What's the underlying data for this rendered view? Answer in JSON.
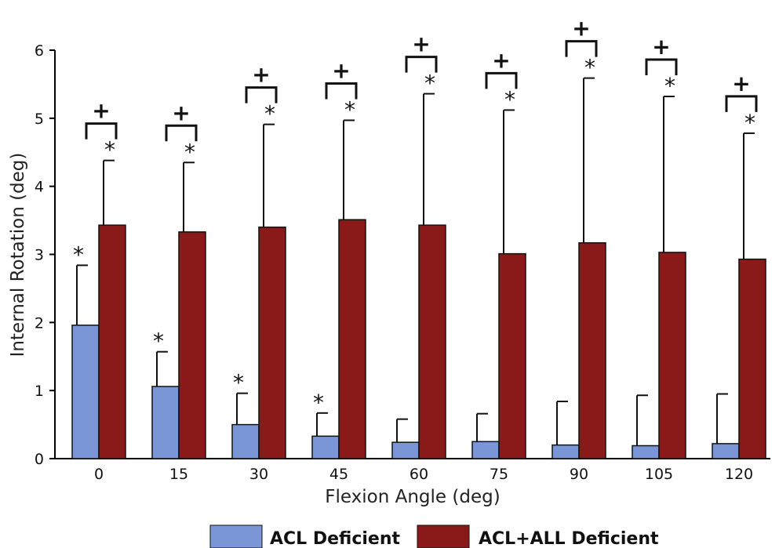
{
  "chart_data": {
    "type": "bar",
    "xlabel": "Flexion Angle (deg)",
    "ylabel": "Internal Rotation (deg)",
    "ylim": [
      0,
      6
    ],
    "yticks": [
      "0",
      "1",
      "2",
      "3",
      "4",
      "5",
      "6"
    ],
    "categories": [
      "0",
      "15",
      "30",
      "45",
      "60",
      "75",
      "90",
      "105",
      "120"
    ],
    "series": [
      {
        "name": "ACL Deficient",
        "color": "#7b96d6",
        "values": [
          1.96,
          1.06,
          0.5,
          0.33,
          0.24,
          0.25,
          0.2,
          0.19,
          0.22
        ],
        "error_upper": [
          0.88,
          0.51,
          0.46,
          0.34,
          0.34,
          0.41,
          0.64,
          0.74,
          0.73
        ],
        "significance": [
          "*",
          "*",
          "*",
          "*",
          "",
          "",
          "",
          "",
          ""
        ]
      },
      {
        "name": "ACL+ALL Deficient",
        "color": "#8a1a1a",
        "values": [
          3.43,
          3.33,
          3.4,
          3.51,
          3.43,
          3.01,
          3.17,
          3.03,
          2.93
        ],
        "error_upper": [
          0.95,
          1.02,
          1.51,
          1.46,
          1.93,
          2.11,
          2.42,
          2.29,
          1.85
        ],
        "significance": [
          "*",
          "*",
          "*",
          "*",
          "*",
          "*",
          "*",
          "*",
          "*"
        ]
      }
    ],
    "pair_significance": [
      "+",
      "+",
      "+",
      "+",
      "+",
      "+",
      "+",
      "+",
      "+"
    ],
    "legend_position": "bottom-center",
    "grid": false
  }
}
